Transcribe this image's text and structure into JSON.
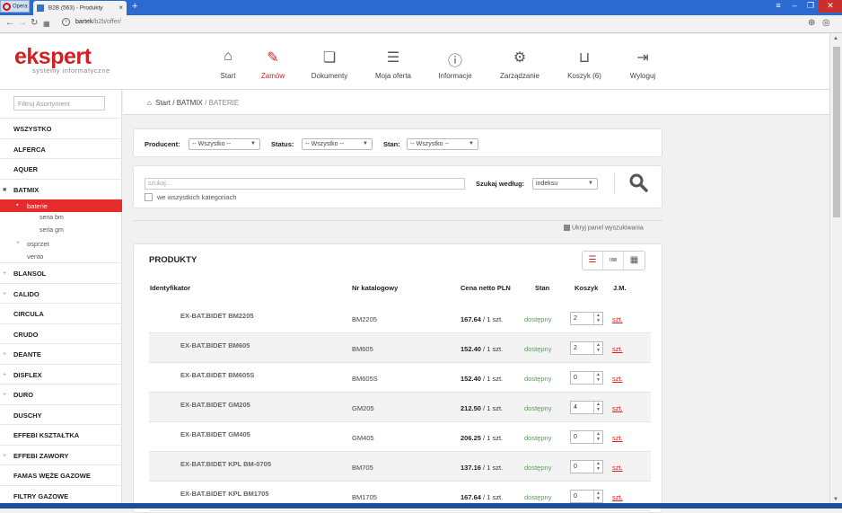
{
  "browser": {
    "menu_label": "Opera",
    "tab_title": "B2B (563) - Produkty",
    "url_host": "bartek",
    "url_path": "/b2b/offer/"
  },
  "header": {
    "logo_brand": "ekspert",
    "logo_tagline": "systemy informatyczne",
    "menu": [
      {
        "label": "Start",
        "icon": "home-icon"
      },
      {
        "label": "Zamów",
        "icon": "order-icon"
      },
      {
        "label": "Dokumenty",
        "icon": "documents-icon"
      },
      {
        "label": "Moja oferta",
        "icon": "list-icon"
      },
      {
        "label": "Informacje",
        "icon": "info-icon"
      },
      {
        "label": "Zarządzanie",
        "icon": "gear-icon"
      },
      {
        "label": "Koszyk (6)",
        "icon": "cart-icon"
      },
      {
        "label": "Wyloguj",
        "icon": "logout-icon"
      }
    ]
  },
  "sidebar": {
    "filter_placeholder": "Filtruj Asortyment",
    "categories": [
      {
        "label": "WSZYSTKO"
      },
      {
        "label": "ALFERCA"
      },
      {
        "label": "AQUER"
      },
      {
        "label": "BATMIX"
      },
      {
        "label": "BLANSOL"
      },
      {
        "label": "CALIDO"
      },
      {
        "label": "CIRCULA"
      },
      {
        "label": "CRUDO"
      },
      {
        "label": "DEANTE"
      },
      {
        "label": "DISFLEX"
      },
      {
        "label": "DURO"
      },
      {
        "label": "DUSCHY"
      },
      {
        "label": "EFFEBI KSZTAŁTKA"
      },
      {
        "label": "EFFEBI ZAWORY"
      },
      {
        "label": "FAMAS WĘŻE GAZOWE"
      },
      {
        "label": "FILTRY GAZOWE"
      }
    ],
    "batmix_sub": {
      "baterie": "baterie",
      "seria_bm": "seria bm",
      "seria_gm": "seria gm",
      "osprzet": "osprzet",
      "vento": "vento"
    }
  },
  "breadcrumb": {
    "start": "Start",
    "sep1": "/",
    "batmix": "BATMIX",
    "sep2": "/",
    "current": "BATERIE"
  },
  "filters": {
    "producent_label": "Producent:",
    "producent_value": "-- Wszystko --",
    "status_label": "Status:",
    "status_value": "-- Wszystko --",
    "stan_label": "Stan:",
    "stan_value": "-- Wszystko --"
  },
  "search": {
    "placeholder": "szukaj...",
    "all_categories_label": "we wszystkich kategoriach",
    "search_by_label": "Szukaj według:",
    "search_by_value": "indeksu",
    "hide_panel_label": "Ukryj panel wyszukiwania"
  },
  "products": {
    "title": "PRODUKTY",
    "columns": {
      "id": "Identyfikator",
      "catalog_no": "Nr katalogowy",
      "price": "Cena netto PLN",
      "stock": "Stan",
      "cart": "Koszyk",
      "unit": "J.M."
    },
    "rows": [
      {
        "id": "EX-BAT.BIDET BM2205",
        "catalog_no": "BM2205",
        "price": "167.64",
        "per": "/ 1 szt.",
        "stock": "dostępny",
        "qty": "2",
        "unit": "szt."
      },
      {
        "id": "EX-BAT.BIDET BM605",
        "catalog_no": "BM605",
        "price": "152.40",
        "per": "/ 1 szt.",
        "stock": "dostępny",
        "qty": "2",
        "unit": "szt."
      },
      {
        "id": "EX-BAT.BIDET BM605S",
        "catalog_no": "BM605S",
        "price": "152.40",
        "per": "/ 1 szt.",
        "stock": "dostępny",
        "qty": "0",
        "unit": "szt."
      },
      {
        "id": "EX-BAT.BIDET GM205",
        "catalog_no": "GM205",
        "price": "212.50",
        "per": "/ 1 szt.",
        "stock": "dostępny",
        "qty": "4",
        "unit": "szt."
      },
      {
        "id": "EX-BAT.BIDET GM405",
        "catalog_no": "GM405",
        "price": "206.25",
        "per": "/ 1 szt.",
        "stock": "dostępny",
        "qty": "0",
        "unit": "szt."
      },
      {
        "id": "EX-BAT.BIDET KPL BM-0705",
        "catalog_no": "BM705",
        "price": "137.16",
        "per": "/ 1 szt.",
        "stock": "dostępny",
        "qty": "0",
        "unit": "szt."
      },
      {
        "id": "EX-BAT.BIDET KPL BM1705",
        "catalog_no": "BM1705",
        "price": "167.64",
        "per": "/ 1 szt.",
        "stock": "dostępny",
        "qty": "0",
        "unit": "szt."
      }
    ]
  },
  "colors": {
    "accent": "#d42020",
    "available": "#4aa84a",
    "titlebar": "#2a6ad1"
  }
}
